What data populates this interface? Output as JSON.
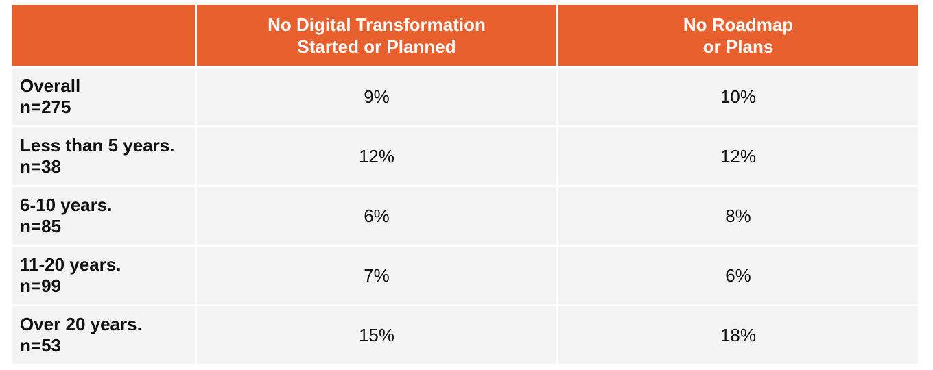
{
  "chart_data": {
    "type": "table",
    "columns": [
      "",
      "No Digital Transformation Started or Planned",
      "No Roadmap or Plans"
    ],
    "header_lines": [
      [
        "No Digital Transformation",
        "Started or Planned"
      ],
      [
        "No Roadmap",
        "or Plans"
      ]
    ],
    "rows": [
      {
        "label": "Overall",
        "n": "n=275",
        "values": [
          "9%",
          "10%"
        ]
      },
      {
        "label": "Less than 5 years.",
        "n": "n=38",
        "values": [
          "12%",
          "12%"
        ]
      },
      {
        "label": "6-10 years.",
        "n": "n=85",
        "values": [
          "6%",
          "8%"
        ]
      },
      {
        "label": "11-20 years.",
        "n": "n=99",
        "values": [
          "7%",
          "6%"
        ]
      },
      {
        "label": "Over 20 years.",
        "n": "n=53",
        "values": [
          "15%",
          "18%"
        ]
      }
    ]
  },
  "colors": {
    "header_bg": "#e8602e",
    "row_bg": "#f3f3f3",
    "header_text": "#ffffff",
    "body_text": "#111111"
  }
}
